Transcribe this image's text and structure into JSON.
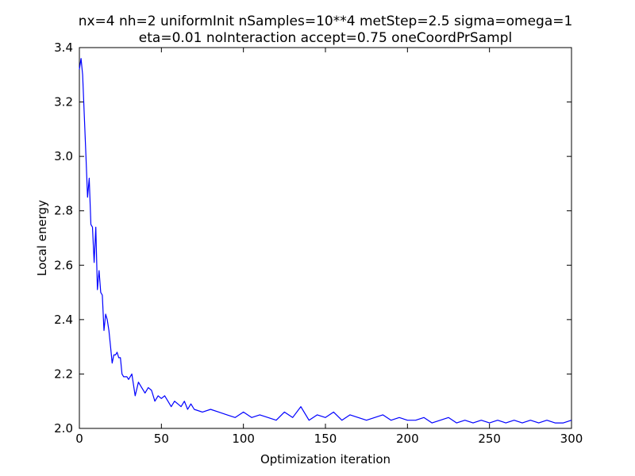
{
  "chart_data": {
    "type": "line",
    "title": "nx=4 nh=2 uniformInit nSamples=10**4 metStep=2.5 sigma=omega=1",
    "subtitle": "eta=0.01 noInteraction accept=0.75 oneCoordPrSampl",
    "xlabel": "Optimization iteration",
    "ylabel": "Local energy",
    "xlim": [
      0,
      300
    ],
    "ylim": [
      2.0,
      3.4
    ],
    "xticks": [
      "0",
      "50",
      "100",
      "150",
      "200",
      "250",
      "300"
    ],
    "yticks": [
      "2.0",
      "2.2",
      "2.4",
      "2.6",
      "2.8",
      "3.0",
      "3.2",
      "3.4"
    ],
    "grid": false,
    "series": [
      {
        "color": "#0000ff",
        "x": [
          0,
          1,
          2,
          3,
          4,
          5,
          6,
          7,
          8,
          9,
          10,
          11,
          12,
          13,
          14,
          15,
          16,
          17,
          18,
          19,
          20,
          21,
          22,
          23,
          24,
          25,
          26,
          27,
          28,
          29,
          30,
          32,
          34,
          36,
          38,
          40,
          42,
          44,
          46,
          48,
          50,
          52,
          54,
          56,
          58,
          60,
          62,
          64,
          66,
          68,
          70,
          75,
          80,
          85,
          90,
          95,
          100,
          105,
          110,
          115,
          120,
          125,
          130,
          135,
          140,
          145,
          150,
          155,
          160,
          165,
          170,
          175,
          180,
          185,
          190,
          195,
          200,
          205,
          210,
          215,
          220,
          225,
          230,
          235,
          240,
          245,
          250,
          255,
          260,
          265,
          270,
          275,
          280,
          285,
          290,
          295,
          300
        ],
        "y": [
          3.32,
          3.36,
          3.3,
          3.15,
          3.0,
          2.85,
          2.92,
          2.75,
          2.74,
          2.61,
          2.74,
          2.51,
          2.58,
          2.5,
          2.49,
          2.36,
          2.42,
          2.4,
          2.36,
          2.3,
          2.24,
          2.27,
          2.27,
          2.28,
          2.26,
          2.26,
          2.2,
          2.19,
          2.19,
          2.19,
          2.18,
          2.2,
          2.12,
          2.17,
          2.15,
          2.13,
          2.15,
          2.14,
          2.1,
          2.12,
          2.11,
          2.12,
          2.1,
          2.08,
          2.1,
          2.09,
          2.08,
          2.1,
          2.07,
          2.09,
          2.07,
          2.06,
          2.07,
          2.06,
          2.05,
          2.04,
          2.06,
          2.04,
          2.05,
          2.04,
          2.03,
          2.06,
          2.04,
          2.08,
          2.03,
          2.05,
          2.04,
          2.06,
          2.03,
          2.05,
          2.04,
          2.03,
          2.04,
          2.05,
          2.03,
          2.04,
          2.03,
          2.03,
          2.04,
          2.02,
          2.03,
          2.04,
          2.02,
          2.03,
          2.02,
          2.03,
          2.02,
          2.03,
          2.02,
          2.03,
          2.02,
          2.03,
          2.02,
          2.03,
          2.02,
          2.02,
          2.03
        ]
      }
    ]
  }
}
